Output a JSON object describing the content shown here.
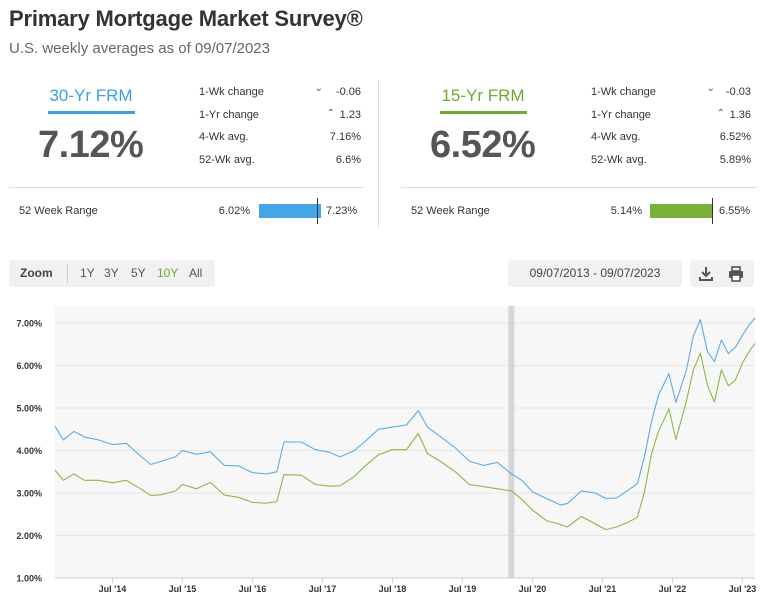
{
  "header": {
    "title": "Primary Mortgage Market Survey®",
    "subtitle": "U.S. weekly averages as of 09/07/2023"
  },
  "colors": {
    "frm30": "#3b9fe0",
    "frm15": "#6fa832",
    "line30": "#5aace6",
    "line15": "#8ab84a"
  },
  "frm30": {
    "name": "30-Yr FRM",
    "rate": "7.12%",
    "stats": [
      {
        "label": "1-Wk change",
        "value": "-0.06",
        "arrow": "down"
      },
      {
        "label": "1-Yr change",
        "value": "1.23",
        "arrow": "up"
      },
      {
        "label": "4-Wk avg.",
        "value": "7.16%",
        "arrow": ""
      },
      {
        "label": "52-Wk avg.",
        "value": "6.6%",
        "arrow": ""
      }
    ],
    "range_label": "52 Week Range",
    "range_low": "6.02%",
    "range_high": "7.23%"
  },
  "frm15": {
    "name": "15-Yr FRM",
    "rate": "6.52%",
    "stats": [
      {
        "label": "1-Wk change",
        "value": "-0.03",
        "arrow": "down"
      },
      {
        "label": "1-Yr change",
        "value": "1.36",
        "arrow": "up"
      },
      {
        "label": "4-Wk avg.",
        "value": "6.52%",
        "arrow": ""
      },
      {
        "label": "52-Wk avg.",
        "value": "5.89%",
        "arrow": ""
      }
    ],
    "range_label": "52 Week Range",
    "range_low": "5.14%",
    "range_high": "6.55%"
  },
  "toolbar": {
    "zoom_label": "Zoom",
    "buttons": [
      "1Y",
      "3Y",
      "5Y",
      "10Y",
      "All"
    ],
    "active": "10Y",
    "date_range": "09/07/2013 - 09/07/2023",
    "download_icon": "download-icon",
    "print_icon": "print-icon"
  },
  "chart_data": {
    "type": "line",
    "title": "",
    "xlabel": "",
    "ylabel": "",
    "ylim": [
      1.0,
      7.4
    ],
    "xlim": [
      2013.68,
      2023.68
    ],
    "yticks": [
      "1.00%",
      "2.00%",
      "3.00%",
      "4.00%",
      "5.00%",
      "6.00%",
      "7.00%"
    ],
    "ytick_values": [
      1,
      2,
      3,
      4,
      5,
      6,
      7
    ],
    "xticks": [
      "Jul '14",
      "Jul '15",
      "Jul '16",
      "Jul '17",
      "Jul '18",
      "Jul '19",
      "Jul '20",
      "Jul '21",
      "Jul '22",
      "Jul '23"
    ],
    "xtick_values": [
      2014.5,
      2015.5,
      2016.5,
      2017.5,
      2018.5,
      2019.5,
      2020.5,
      2021.5,
      2022.5,
      2023.5
    ],
    "marker_x": 2020.2,
    "series": [
      {
        "name": "30-Yr FRM",
        "x": [
          2013.68,
          2013.8,
          2013.95,
          2014.1,
          2014.3,
          2014.5,
          2014.7,
          2014.9,
          2015.05,
          2015.2,
          2015.4,
          2015.5,
          2015.7,
          2015.9,
          2016.1,
          2016.3,
          2016.5,
          2016.7,
          2016.85,
          2016.95,
          2017.2,
          2017.4,
          2017.6,
          2017.75,
          2017.95,
          2018.1,
          2018.3,
          2018.5,
          2018.7,
          2018.87,
          2019.0,
          2019.2,
          2019.4,
          2019.6,
          2019.8,
          2020.0,
          2020.2,
          2020.35,
          2020.5,
          2020.7,
          2020.9,
          2021.0,
          2021.2,
          2021.4,
          2021.55,
          2021.7,
          2021.85,
          2022.0,
          2022.1,
          2022.2,
          2022.3,
          2022.45,
          2022.55,
          2022.7,
          2022.8,
          2022.9,
          2023.0,
          2023.1,
          2023.2,
          2023.3,
          2023.4,
          2023.5,
          2023.6,
          2023.68
        ],
        "values": [
          4.57,
          4.25,
          4.45,
          4.32,
          4.25,
          4.14,
          4.17,
          3.87,
          3.67,
          3.75,
          3.85,
          4.0,
          3.91,
          3.97,
          3.65,
          3.64,
          3.48,
          3.45,
          3.5,
          4.2,
          4.2,
          4.02,
          3.96,
          3.85,
          3.99,
          4.2,
          4.5,
          4.55,
          4.6,
          4.94,
          4.55,
          4.31,
          4.06,
          3.75,
          3.65,
          3.72,
          3.45,
          3.3,
          3.03,
          2.87,
          2.72,
          2.75,
          3.05,
          3.0,
          2.87,
          2.88,
          3.05,
          3.22,
          3.85,
          4.67,
          5.3,
          5.81,
          5.13,
          5.89,
          6.7,
          7.08,
          6.33,
          6.09,
          6.6,
          6.28,
          6.43,
          6.71,
          6.96,
          7.12
        ]
      },
      {
        "name": "15-Yr FRM",
        "x": [
          2013.68,
          2013.8,
          2013.95,
          2014.1,
          2014.3,
          2014.5,
          2014.7,
          2014.9,
          2015.05,
          2015.2,
          2015.4,
          2015.5,
          2015.7,
          2015.9,
          2016.1,
          2016.3,
          2016.5,
          2016.7,
          2016.85,
          2016.95,
          2017.2,
          2017.4,
          2017.6,
          2017.75,
          2017.95,
          2018.1,
          2018.3,
          2018.5,
          2018.7,
          2018.87,
          2019.0,
          2019.2,
          2019.4,
          2019.6,
          2019.8,
          2020.0,
          2020.2,
          2020.35,
          2020.5,
          2020.7,
          2020.9,
          2021.0,
          2021.2,
          2021.4,
          2021.55,
          2021.7,
          2021.85,
          2022.0,
          2022.1,
          2022.2,
          2022.3,
          2022.45,
          2022.55,
          2022.7,
          2022.8,
          2022.9,
          2023.0,
          2023.1,
          2023.2,
          2023.3,
          2023.4,
          2023.5,
          2023.6,
          2023.68
        ],
        "values": [
          3.54,
          3.3,
          3.45,
          3.3,
          3.3,
          3.24,
          3.3,
          3.1,
          2.94,
          2.96,
          3.05,
          3.2,
          3.1,
          3.25,
          2.95,
          2.9,
          2.78,
          2.76,
          2.8,
          3.43,
          3.42,
          3.2,
          3.16,
          3.17,
          3.38,
          3.62,
          3.9,
          4.02,
          4.02,
          4.4,
          3.93,
          3.73,
          3.5,
          3.2,
          3.15,
          3.1,
          3.05,
          2.85,
          2.6,
          2.35,
          2.26,
          2.2,
          2.45,
          2.27,
          2.14,
          2.2,
          2.3,
          2.43,
          3.02,
          3.91,
          4.44,
          4.98,
          4.26,
          5.16,
          5.9,
          6.29,
          5.54,
          5.14,
          5.9,
          5.52,
          5.66,
          6.06,
          6.34,
          6.52
        ]
      }
    ]
  }
}
